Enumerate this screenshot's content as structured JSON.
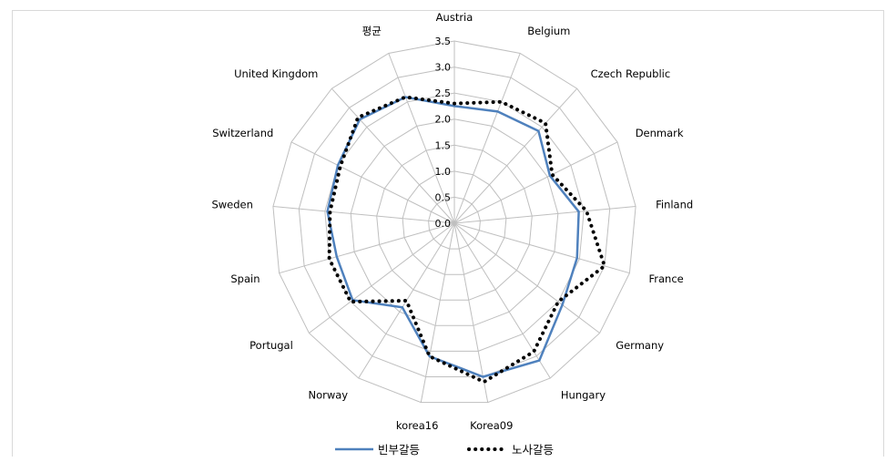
{
  "chart_data": {
    "type": "radar",
    "categories": [
      "Austria",
      "Belgium",
      "Czech Republic",
      "Denmark",
      "Finland",
      "France",
      "Germany",
      "Hungary",
      "Korea09",
      "korea16",
      "Norway",
      "Portugal",
      "Spain",
      "Sweden",
      "Switzerland",
      "United Kingdom",
      "평균"
    ],
    "rlim": [
      0,
      3.5
    ],
    "ticks": [
      "0.0",
      "0.5",
      "1.0",
      "1.5",
      "2.0",
      "2.5",
      "3.0",
      "3.5"
    ],
    "series": [
      {
        "name": "빈부갈등",
        "style": "solid",
        "color": "#4F81BD",
        "values": [
          2.25,
          2.3,
          2.4,
          2.05,
          2.4,
          2.45,
          2.6,
          3.1,
          3.0,
          2.6,
          1.9,
          2.45,
          2.35,
          2.45,
          2.5,
          2.7,
          2.6
        ]
      },
      {
        "name": "노사갈등",
        "style": "dotted",
        "color": "#000000",
        "values": [
          2.3,
          2.5,
          2.6,
          2.1,
          2.55,
          3.0,
          2.5,
          2.9,
          3.1,
          2.6,
          1.75,
          2.5,
          2.5,
          2.4,
          2.45,
          2.75,
          2.6
        ]
      }
    ],
    "grid": true,
    "legend_position": "bottom"
  }
}
